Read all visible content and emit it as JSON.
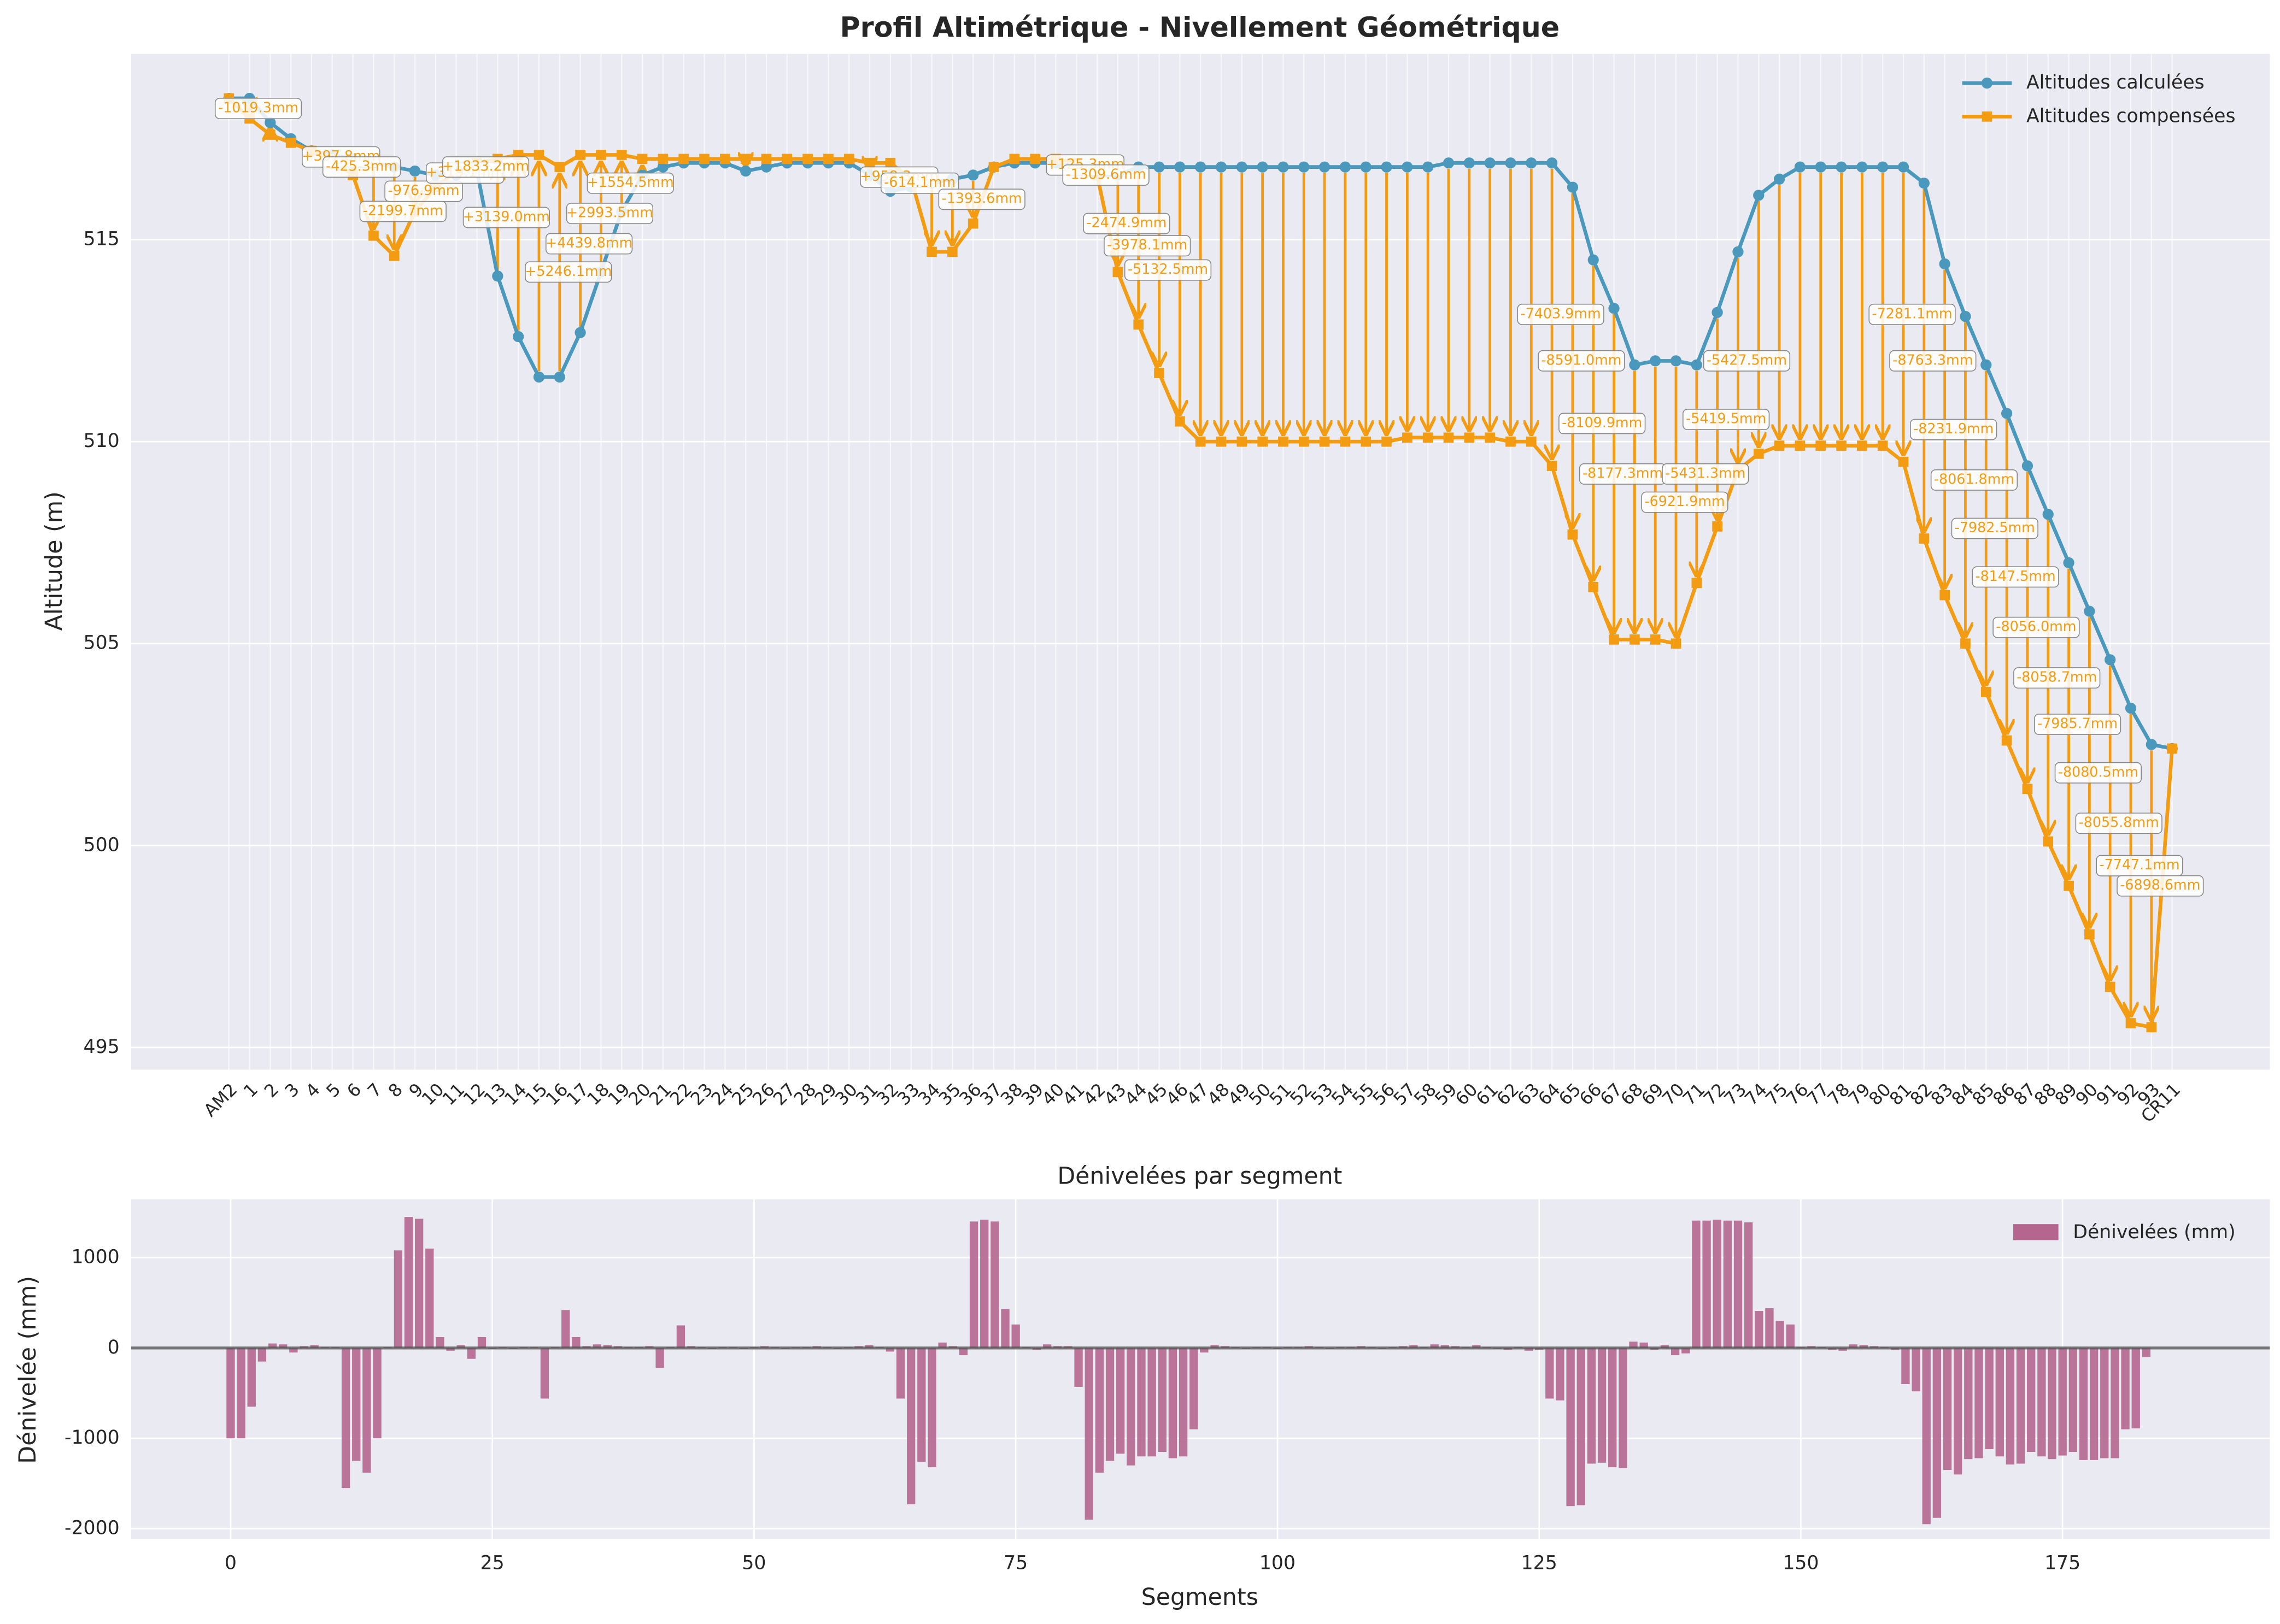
{
  "chart_data": [
    {
      "type": "line",
      "title": "Profil Altimétrique - Nivellement Géométrique",
      "ylabel": "Altitude (m)",
      "categories": [
        "AM2",
        "1",
        "2",
        "3",
        "4",
        "5",
        "6",
        "7",
        "8",
        "9",
        "10",
        "11",
        "12",
        "13",
        "14",
        "15",
        "16",
        "17",
        "18",
        "19",
        "20",
        "21",
        "22",
        "23",
        "24",
        "25",
        "26",
        "27",
        "28",
        "29",
        "30",
        "31",
        "32",
        "33",
        "34",
        "35",
        "36",
        "37",
        "38",
        "39",
        "40",
        "41",
        "42",
        "43",
        "44",
        "45",
        "46",
        "47",
        "48",
        "49",
        "50",
        "51",
        "52",
        "53",
        "54",
        "55",
        "56",
        "57",
        "58",
        "59",
        "60",
        "61",
        "62",
        "63",
        "64",
        "65",
        "66",
        "67",
        "68",
        "69",
        "70",
        "71",
        "72",
        "73",
        "74",
        "75",
        "76",
        "77",
        "78",
        "79",
        "80",
        "81",
        "82",
        "83",
        "84",
        "85",
        "86",
        "87",
        "88",
        "89",
        "90",
        "91",
        "92",
        "93",
        "CR11"
      ],
      "series": [
        {
          "name": "Altitudes calculées",
          "color": "#4a98bc",
          "marker": "circle",
          "values": [
            518.5,
            518.5,
            517.9,
            517.5,
            517.2,
            517.1,
            517.0,
            516.9,
            516.8,
            516.7,
            516.6,
            516.6,
            516.7,
            514.1,
            512.6,
            511.6,
            511.6,
            512.7,
            514.2,
            515.7,
            516.6,
            516.8,
            516.9,
            516.9,
            516.9,
            516.7,
            516.8,
            516.9,
            516.9,
            516.9,
            516.9,
            516.6,
            516.2,
            516.3,
            516.4,
            516.5,
            516.6,
            516.8,
            516.9,
            516.9,
            516.9,
            516.8,
            516.6,
            516.6,
            516.8,
            516.8,
            516.8,
            516.8,
            516.8,
            516.8,
            516.8,
            516.8,
            516.8,
            516.8,
            516.8,
            516.8,
            516.8,
            516.8,
            516.8,
            516.9,
            516.9,
            516.9,
            516.9,
            516.9,
            516.9,
            516.3,
            514.5,
            513.3,
            511.9,
            512.0,
            512.0,
            511.9,
            513.2,
            514.7,
            516.1,
            516.5,
            516.8,
            516.8,
            516.8,
            516.8,
            516.8,
            516.8,
            516.4,
            514.4,
            513.1,
            511.9,
            510.7,
            509.4,
            508.2,
            507.0,
            505.8,
            504.6,
            503.4,
            502.5,
            502.4
          ]
        },
        {
          "name": "Altitudes compensées",
          "color": "#f39c12",
          "marker": "square",
          "values": [
            518.5,
            518.0,
            517.6,
            517.4,
            517.2,
            517.0,
            516.6,
            515.1,
            514.6,
            515.7,
            516.3,
            516.7,
            516.9,
            517.0,
            517.1,
            517.1,
            516.8,
            517.1,
            517.1,
            517.1,
            517.0,
            517.0,
            517.0,
            517.0,
            517.0,
            517.0,
            517.0,
            517.0,
            517.0,
            517.0,
            517.0,
            516.9,
            516.9,
            516.5,
            514.7,
            514.7,
            515.4,
            516.8,
            517.0,
            517.0,
            517.0,
            516.9,
            516.6,
            514.2,
            512.9,
            511.7,
            510.5,
            510.0,
            510.0,
            510.0,
            510.0,
            510.0,
            510.0,
            510.0,
            510.0,
            510.0,
            510.0,
            510.1,
            510.1,
            510.1,
            510.1,
            510.1,
            510.0,
            510.0,
            509.4,
            507.7,
            506.4,
            505.1,
            505.1,
            505.1,
            505.0,
            506.5,
            507.9,
            509.3,
            509.7,
            509.9,
            509.9,
            509.9,
            509.9,
            509.9,
            509.9,
            509.5,
            507.6,
            506.2,
            505.0,
            503.8,
            502.6,
            501.4,
            500.1,
            499.0,
            497.8,
            496.5,
            495.6,
            495.5,
            502.4
          ]
        }
      ],
      "annotations": [
        {
          "text": "-1019.3mm",
          "category": "1"
        },
        {
          "text": "+397.8mm",
          "category": "5"
        },
        {
          "text": "-425.3mm",
          "category": "6"
        },
        {
          "text": "-2199.7mm",
          "category": "8"
        },
        {
          "text": "-976.9mm",
          "category": "9"
        },
        {
          "text": "+319.1mm",
          "category": "11"
        },
        {
          "text": "+1833.2mm",
          "category": "12"
        },
        {
          "text": "+3139.0mm",
          "category": "13"
        },
        {
          "text": "+5246.1mm",
          "category": "16"
        },
        {
          "text": "+4439.8mm",
          "category": "17"
        },
        {
          "text": "+2993.5mm",
          "category": "18"
        },
        {
          "text": "+1554.5mm",
          "category": "19"
        },
        {
          "text": "+958.3mm",
          "category": "32"
        },
        {
          "text": "-614.1mm",
          "category": "33"
        },
        {
          "text": "-1393.6mm",
          "category": "36"
        },
        {
          "text": "+125.3mm",
          "category": "41"
        },
        {
          "text": "-1309.6mm",
          "category": "42"
        },
        {
          "text": "-2474.9mm",
          "category": "43"
        },
        {
          "text": "-3978.1mm",
          "category": "44"
        },
        {
          "text": "-5132.5mm",
          "category": "45"
        },
        {
          "text": "-7403.9mm",
          "category": "64"
        },
        {
          "text": "-8591.0mm",
          "category": "65"
        },
        {
          "text": "-8109.9mm",
          "category": "66"
        },
        {
          "text": "-8177.3mm",
          "category": "67"
        },
        {
          "text": "-6921.9mm",
          "category": "70"
        },
        {
          "text": "-5431.3mm",
          "category": "71"
        },
        {
          "text": "-5419.5mm",
          "category": "72"
        },
        {
          "text": "-5427.5mm",
          "category": "73"
        },
        {
          "text": "-7281.1mm",
          "category": "81"
        },
        {
          "text": "-8763.3mm",
          "category": "82"
        },
        {
          "text": "-8231.9mm",
          "category": "83"
        },
        {
          "text": "-8061.8mm",
          "category": "84"
        },
        {
          "text": "-7982.5mm",
          "category": "85"
        },
        {
          "text": "-8147.5mm",
          "category": "86"
        },
        {
          "text": "-8056.0mm",
          "category": "87"
        },
        {
          "text": "-8058.7mm",
          "category": "88"
        },
        {
          "text": "-7985.7mm",
          "category": "89"
        },
        {
          "text": "-8080.5mm",
          "category": "90"
        },
        {
          "text": "-8055.8mm",
          "category": "91"
        },
        {
          "text": "-7747.1mm",
          "category": "92"
        },
        {
          "text": "-6898.6mm",
          "category": "93"
        }
      ],
      "ylim": [
        494.45,
        519.6
      ],
      "yticks": [
        495,
        500,
        505,
        510,
        515
      ],
      "grid": true,
      "legend": "upper right"
    },
    {
      "type": "bar",
      "title": "Dénivelées par segment",
      "xlabel": "Segments",
      "ylabel": "Dénivelée (mm)",
      "x": [
        0,
        1,
        2,
        3,
        4,
        5,
        6,
        7,
        8,
        9,
        10,
        11,
        12,
        13,
        14,
        15,
        16,
        17,
        18,
        19,
        20,
        21,
        22,
        23,
        24,
        25,
        26,
        27,
        28,
        29,
        30,
        31,
        32,
        33,
        34,
        35,
        36,
        37,
        38,
        39,
        40,
        41,
        42,
        43,
        44,
        45,
        46,
        47,
        48,
        49,
        50,
        51,
        52,
        53,
        54,
        55,
        56,
        57,
        58,
        59,
        60,
        61,
        62,
        63,
        64,
        65,
        66,
        67,
        68,
        69,
        70,
        71,
        72,
        73,
        74,
        75,
        76,
        77,
        78,
        79,
        80,
        81,
        82,
        83,
        84,
        85,
        86,
        87,
        88,
        89,
        90,
        91,
        92,
        93,
        94,
        95,
        96,
        97,
        98,
        99,
        100,
        101,
        102,
        103,
        104,
        105,
        106,
        107,
        108,
        109,
        110,
        111,
        112,
        113,
        114,
        115,
        116,
        117,
        118,
        119,
        120,
        121,
        122,
        123,
        124,
        125,
        126,
        127,
        128,
        129,
        130,
        131,
        132,
        133,
        134,
        135,
        136,
        137,
        138,
        139,
        140,
        141,
        142,
        143,
        144,
        145,
        146,
        147,
        148,
        149,
        150,
        151,
        152,
        153,
        154,
        155,
        156,
        157,
        158,
        159,
        160,
        161,
        162,
        163,
        164,
        165,
        166,
        167,
        168,
        169,
        170,
        171,
        172,
        173,
        174,
        175,
        176,
        177,
        178,
        179,
        180,
        181,
        182,
        183
      ],
      "series": [
        {
          "name": "Dénivelées (mm)",
          "color": "#b5668f",
          "values": [
            -1000,
            -1000,
            -650,
            -150,
            50,
            40,
            -50,
            20,
            30,
            10,
            10,
            -1550,
            -1250,
            -1380,
            -1000,
            10,
            1080,
            1450,
            1430,
            1100,
            120,
            -30,
            30,
            -120,
            120,
            -10,
            10,
            -10,
            10,
            10,
            -560,
            10,
            420,
            120,
            20,
            40,
            30,
            20,
            10,
            10,
            20,
            -220,
            10,
            250,
            20,
            10,
            -10,
            10,
            10,
            -10,
            10,
            20,
            10,
            -10,
            10,
            10,
            20,
            10,
            -10,
            10,
            20,
            30,
            10,
            -40,
            -560,
            -1730,
            -1260,
            -1320,
            60,
            20,
            -80,
            1400,
            1420,
            1400,
            430,
            260,
            10,
            -20,
            40,
            20,
            20,
            -430,
            -1900,
            -1380,
            -1250,
            -1170,
            -1300,
            -1200,
            -1200,
            -1150,
            -1220,
            -1200,
            -900,
            -50,
            30,
            20,
            10,
            -10,
            10,
            10,
            -10,
            10,
            10,
            20,
            10,
            -10,
            10,
            10,
            20,
            10,
            -10,
            10,
            20,
            30,
            10,
            40,
            30,
            20,
            10,
            30,
            10,
            -10,
            -20,
            10,
            -30,
            -20,
            -560,
            -580,
            -1750,
            -1740,
            -1280,
            -1270,
            -1320,
            -1330,
            70,
            60,
            -20,
            30,
            -80,
            -60,
            1410,
            1410,
            1420,
            1410,
            1410,
            1390,
            410,
            440,
            300,
            260,
            10,
            20,
            10,
            -20,
            -30,
            40,
            30,
            20,
            10,
            -20,
            -400,
            -480,
            -1950,
            -1880,
            -1350,
            -1400,
            -1230,
            -1220,
            -1120,
            -1200,
            -1290,
            -1280,
            -1150,
            -1200,
            -1230,
            -1190,
            -1150,
            -1240,
            -1240,
            -1220,
            -1220,
            -900,
            -890,
            -100
          ]
        }
      ],
      "xlim": [
        -9.5,
        194.8
      ],
      "xticks": [
        0,
        25,
        50,
        75,
        100,
        125,
        150,
        175
      ],
      "ylim": [
        -2113,
        1645
      ],
      "yticks": [
        -2000,
        -1000,
        0,
        1000
      ],
      "grid": true,
      "legend": "upper right"
    }
  ]
}
